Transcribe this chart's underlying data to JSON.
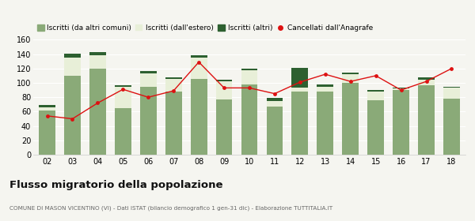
{
  "years": [
    "02",
    "03",
    "04",
    "05",
    "06",
    "07",
    "08",
    "09",
    "10",
    "11",
    "12",
    "13",
    "14",
    "15",
    "16",
    "17",
    "18"
  ],
  "iscritti_comuni": [
    62,
    110,
    120,
    65,
    95,
    88,
    105,
    77,
    98,
    67,
    88,
    88,
    100,
    76,
    90,
    97,
    78
  ],
  "iscritti_estero": [
    4,
    25,
    18,
    30,
    18,
    18,
    30,
    25,
    20,
    8,
    5,
    7,
    12,
    12,
    2,
    7,
    15
  ],
  "iscritti_altri": [
    3,
    6,
    5,
    2,
    3,
    2,
    3,
    2,
    2,
    4,
    28,
    3,
    2,
    2,
    1,
    4,
    2
  ],
  "cancellati": [
    54,
    50,
    72,
    91,
    80,
    89,
    129,
    93,
    93,
    85,
    101,
    112,
    102,
    110,
    90,
    102,
    120
  ],
  "color_comuni": "#8aaa78",
  "color_estero": "#e8efd8",
  "color_altri": "#2d6030",
  "color_cancellati": "#dd1111",
  "legend_labels": [
    "Iscritti (da altri comuni)",
    "Iscritti (dall'estero)",
    "Iscritti (altri)",
    "Cancellati dall'Anagrafe"
  ],
  "ylim": [
    0,
    160
  ],
  "yticks": [
    0,
    20,
    40,
    60,
    80,
    100,
    120,
    140,
    160
  ],
  "title": "Flusso migratorio della popolazione",
  "subtitle": "COMUNE DI MASON VICENTINO (VI) - Dati ISTAT (bilancio demografico 1 gen-31 dic) - Elaborazione TUTTITALIA.IT",
  "bg_color": "#f5f5f0"
}
